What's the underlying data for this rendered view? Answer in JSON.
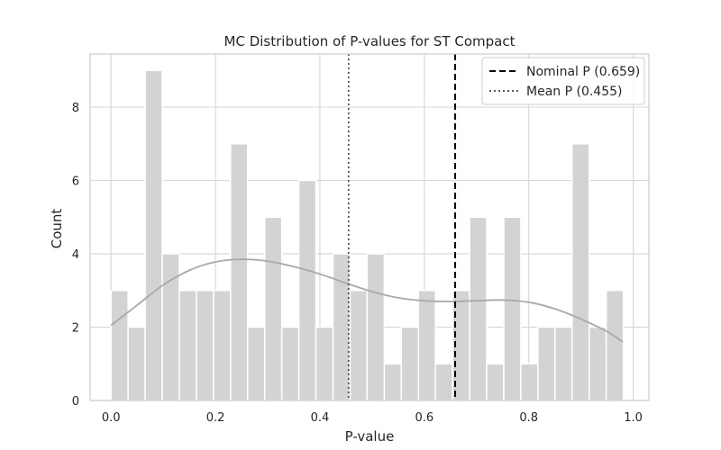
{
  "chart_data": {
    "type": "bar",
    "subtype": "histogram_with_kde",
    "title": "MC Distribution of P-values for ST Compact",
    "xlabel": "P-value",
    "ylabel": "Count",
    "xlim": [
      -0.04,
      1.03
    ],
    "ylim": [
      0,
      9.45
    ],
    "grid": true,
    "legend_position": "top-right",
    "x_ticks": [
      0.0,
      0.2,
      0.4,
      0.6,
      0.8,
      1.0
    ],
    "x_tick_labels": [
      "0.0",
      "0.2",
      "0.4",
      "0.6",
      "0.8",
      "1.0"
    ],
    "y_ticks": [
      0,
      2,
      4,
      6,
      8
    ],
    "y_tick_labels": [
      "0",
      "2",
      "4",
      "6",
      "8"
    ],
    "bin_start": 0.0,
    "bin_width": 0.0327,
    "values": [
      3,
      2,
      9,
      4,
      3,
      3,
      3,
      7,
      2,
      5,
      2,
      6,
      2,
      4,
      3,
      4,
      1,
      2,
      3,
      1,
      3,
      5,
      1,
      5,
      1,
      2,
      2,
      7,
      2,
      3
    ],
    "kde": {
      "x": [
        0.0,
        0.05,
        0.1,
        0.15,
        0.2,
        0.25,
        0.3,
        0.35,
        0.4,
        0.45,
        0.5,
        0.55,
        0.6,
        0.65,
        0.7,
        0.75,
        0.8,
        0.85,
        0.9,
        0.95,
        0.98
      ],
      "y": [
        2.05,
        2.6,
        3.15,
        3.55,
        3.78,
        3.85,
        3.8,
        3.65,
        3.45,
        3.2,
        2.97,
        2.8,
        2.72,
        2.7,
        2.72,
        2.74,
        2.68,
        2.5,
        2.22,
        1.88,
        1.6
      ]
    },
    "reference_lines": [
      {
        "name": "Nominal P (0.659)",
        "x": 0.659,
        "style": "dashed",
        "color": "#000000"
      },
      {
        "name": "Mean P (0.455)",
        "x": 0.455,
        "style": "dotted",
        "color": "#555555"
      }
    ],
    "colors": {
      "bar": "#d3d3d3",
      "kde": "#a9a9a9",
      "grid": "#d9d9d9",
      "spine": "#cccccc"
    }
  }
}
